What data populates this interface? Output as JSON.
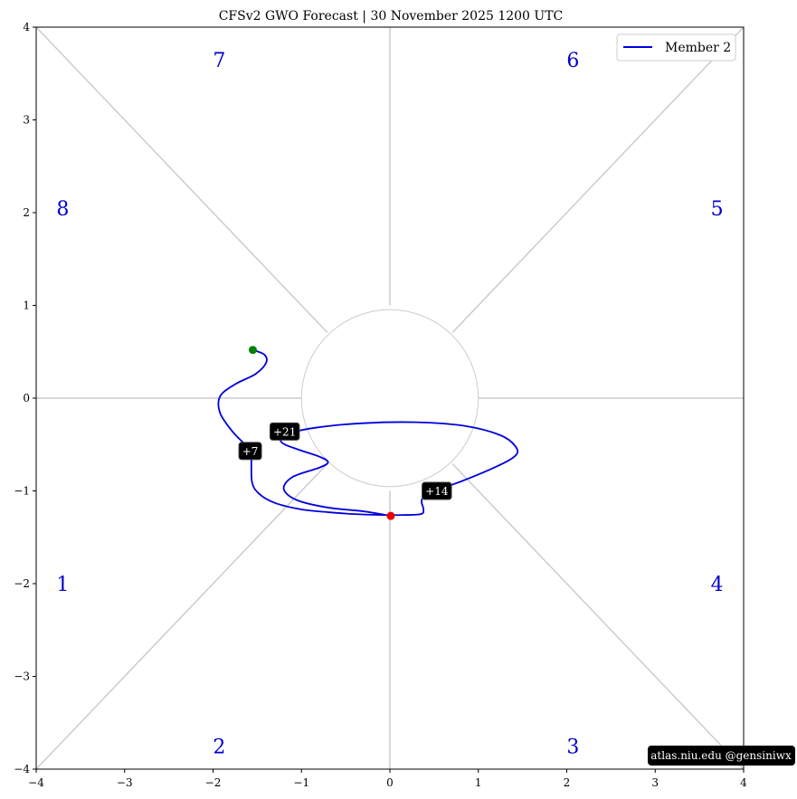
{
  "chart_data": {
    "type": "line",
    "title": "CFSv2 GWO Forecast   |   30  November  2025 1200 UTC",
    "xlim": [
      -4,
      4
    ],
    "ylim": [
      -4,
      4
    ],
    "x_ticks": [
      -4,
      -3,
      -2,
      -1,
      0,
      1,
      2,
      3,
      4
    ],
    "y_ticks": [
      -4,
      -3,
      -2,
      -1,
      0,
      1,
      2,
      3,
      4
    ],
    "x_tick_labels": [
      "−4",
      "−3",
      "−2",
      "−1",
      "0",
      "1",
      "2",
      "3",
      "4"
    ],
    "y_tick_labels": [
      "−4",
      "−3",
      "−2",
      "−1",
      "0",
      "1",
      "2",
      "3",
      "4"
    ],
    "grid": false,
    "legend": {
      "position": "top-right",
      "entries": [
        "Member 2"
      ]
    },
    "colors": {
      "line": "#0000dd",
      "start": "#008000",
      "end": "#ee0000",
      "guides": "#cccccc",
      "phase_labels": "#0000cc"
    },
    "phases": [
      {
        "label": "1",
        "x": -3.7,
        "y": -2.0
      },
      {
        "label": "2",
        "x": -1.93,
        "y": -3.75
      },
      {
        "label": "3",
        "x": 2.07,
        "y": -3.75
      },
      {
        "label": "4",
        "x": 3.7,
        "y": -2.0
      },
      {
        "label": "5",
        "x": 3.7,
        "y": 2.05
      },
      {
        "label": "6",
        "x": 2.07,
        "y": 3.65
      },
      {
        "label": "7",
        "x": -1.93,
        "y": 3.65
      },
      {
        "label": "8",
        "x": -3.7,
        "y": 2.05
      }
    ],
    "series": [
      {
        "name": "Member 2",
        "points": [
          [
            -1.55,
            0.52
          ],
          [
            -1.42,
            0.47
          ],
          [
            -1.4,
            0.38
          ],
          [
            -1.52,
            0.26
          ],
          [
            -1.75,
            0.15
          ],
          [
            -1.92,
            0.02
          ],
          [
            -1.92,
            -0.16
          ],
          [
            -1.78,
            -0.36
          ],
          [
            -1.62,
            -0.52
          ],
          [
            -1.57,
            -0.62
          ],
          [
            -1.56,
            -0.9
          ],
          [
            -1.48,
            -1.03
          ],
          [
            -1.3,
            -1.13
          ],
          [
            -1.0,
            -1.2
          ],
          [
            -0.7,
            -1.23
          ],
          [
            -0.4,
            -1.25
          ],
          [
            -0.1,
            -1.26
          ],
          [
            0.15,
            -1.26
          ],
          [
            0.35,
            -1.25
          ],
          [
            0.38,
            -1.2
          ],
          [
            0.36,
            -1.1
          ],
          [
            0.45,
            -1.02
          ],
          [
            0.8,
            -0.9
          ],
          [
            1.2,
            -0.74
          ],
          [
            1.42,
            -0.62
          ],
          [
            1.42,
            -0.52
          ],
          [
            1.25,
            -0.4
          ],
          [
            0.85,
            -0.3
          ],
          [
            0.3,
            -0.26
          ],
          [
            -0.3,
            -0.27
          ],
          [
            -0.85,
            -0.32
          ],
          [
            -1.2,
            -0.4
          ],
          [
            -1.22,
            -0.48
          ],
          [
            -1.05,
            -0.55
          ],
          [
            -0.8,
            -0.63
          ],
          [
            -0.7,
            -0.69
          ],
          [
            -0.8,
            -0.75
          ],
          [
            -1.1,
            -0.85
          ],
          [
            -1.2,
            -0.98
          ],
          [
            -1.05,
            -1.1
          ],
          [
            -0.7,
            -1.18
          ],
          [
            -0.3,
            -1.22
          ],
          [
            0.01,
            -1.27
          ]
        ]
      }
    ],
    "start_point": [
      -1.55,
      0.52
    ],
    "end_point": [
      0.01,
      -1.27
    ],
    "day_labels": [
      {
        "label": "+7",
        "x": -1.58,
        "y": -0.57
      },
      {
        "label": "+14",
        "x": 0.53,
        "y": -1.0
      },
      {
        "label": "+21",
        "x": -1.19,
        "y": -0.36
      }
    ],
    "credit": "atlas.niu.edu  @gensiniwx"
  }
}
